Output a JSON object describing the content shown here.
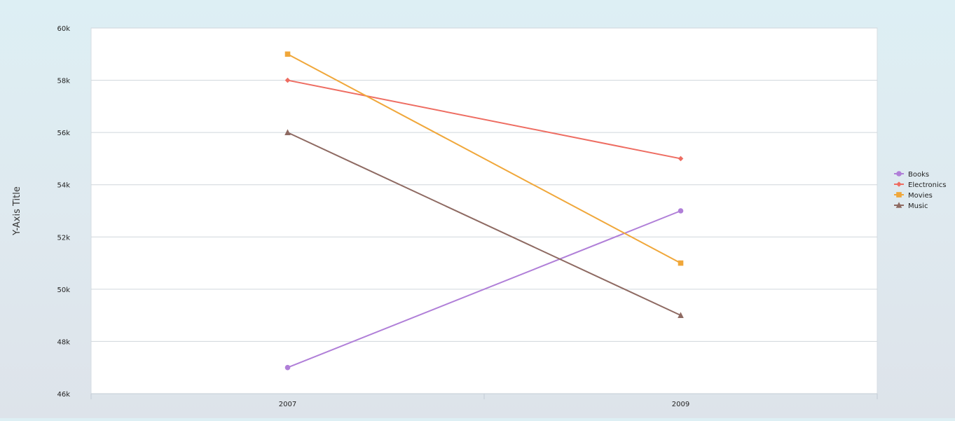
{
  "chart_data": {
    "type": "line",
    "title": "",
    "xlabel": "",
    "ylabel": "Y-Axis Title",
    "categories": [
      "2007",
      "2009"
    ],
    "ylim": [
      46000,
      60000
    ],
    "y_ticks": [
      46000,
      48000,
      50000,
      52000,
      54000,
      56000,
      58000,
      60000
    ],
    "y_tick_labels": [
      "46k",
      "48k",
      "50k",
      "52k",
      "54k",
      "56k",
      "58k",
      "60k"
    ],
    "grid": true,
    "legend_position": "right",
    "series": [
      {
        "name": "Books",
        "values": [
          47000,
          53000
        ],
        "color": "#b07fd8",
        "marker": "circle"
      },
      {
        "name": "Electronics",
        "values": [
          58000,
          55000
        ],
        "color": "#ee6d62",
        "marker": "diamond"
      },
      {
        "name": "Movies",
        "values": [
          59000,
          51000
        ],
        "color": "#f0a73a",
        "marker": "square"
      },
      {
        "name": "Music",
        "values": [
          56000,
          49000
        ],
        "color": "#8e6a62",
        "marker": "triangle"
      }
    ]
  }
}
